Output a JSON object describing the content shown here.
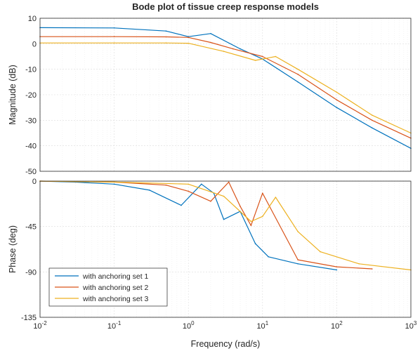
{
  "chart_data": [
    {
      "type": "line",
      "title": "Bode plot of tissue creep response models",
      "xlabel": "",
      "ylabel": "Magnitude (dB)",
      "xscale": "log",
      "xlim": [
        0.01,
        1000
      ],
      "ylim": [
        -50,
        10
      ],
      "yticks": [
        "10",
        "0",
        "-10",
        "-20",
        "-30",
        "-40",
        "-50"
      ],
      "grid": true,
      "series": [
        {
          "name": "with anchoring set 1",
          "color": "#0072BD",
          "dc_gain_db": 6.3,
          "x": [
            0.01,
            0.1,
            0.5,
            1.0,
            2.0,
            5.0,
            10,
            30,
            100,
            300,
            1000
          ],
          "values": [
            6.3,
            6.2,
            5.0,
            2.8,
            4.0,
            -2.0,
            -6.0,
            -15.0,
            -25.0,
            -33.0,
            -41.0
          ]
        },
        {
          "name": "with anchoring set 2",
          "color": "#D95319",
          "dc_gain_db": 2.8,
          "x": [
            0.01,
            0.1,
            0.5,
            1.0,
            2.0,
            4.0,
            10,
            30,
            100,
            300,
            1000
          ],
          "values": [
            2.8,
            2.8,
            2.7,
            2.5,
            0.5,
            -2.0,
            -5.0,
            -12.0,
            -22.0,
            -30.0,
            -37.0
          ]
        },
        {
          "name": "with anchoring set 3",
          "color": "#EDB120",
          "dc_gain_db": 0.3,
          "x": [
            0.01,
            0.1,
            0.5,
            1.0,
            3.0,
            8.0,
            15,
            30,
            100,
            300,
            1000
          ],
          "values": [
            0.3,
            0.3,
            0.3,
            0.2,
            -3.0,
            -6.5,
            -5.0,
            -10.0,
            -19.0,
            -28.0,
            -35.0
          ]
        }
      ]
    },
    {
      "type": "line",
      "title": "",
      "xlabel": "Frequency  (rad/s)",
      "ylabel": "Phase (deg)",
      "xscale": "log",
      "xlim": [
        0.01,
        1000
      ],
      "ylim": [
        -135,
        0
      ],
      "xticks": [
        {
          "base": "10",
          "exp": "-2"
        },
        {
          "base": "10",
          "exp": "-1"
        },
        {
          "base": "10",
          "exp": "0"
        },
        {
          "base": "10",
          "exp": "1"
        },
        {
          "base": "10",
          "exp": "2"
        },
        {
          "base": "10",
          "exp": "3"
        }
      ],
      "yticks": [
        "0",
        "-45",
        "-90",
        "-135"
      ],
      "grid": true,
      "legend": {
        "position": "bottom-left",
        "entries": [
          "with anchoring set 1",
          "with anchoring set 2",
          "with anchoring set 3"
        ]
      },
      "series": [
        {
          "name": "with anchoring set 1",
          "color": "#0072BD",
          "x": [
            0.01,
            0.03,
            0.1,
            0.3,
            0.8,
            1.5,
            2.2,
            3.0,
            5.0,
            8.0,
            12,
            30,
            100
          ],
          "values": [
            0,
            -1,
            -3,
            -9,
            -24,
            -3,
            -12,
            -38,
            -30,
            -62,
            -75,
            -82,
            -88
          ]
        },
        {
          "name": "with anchoring set 2",
          "color": "#D95319",
          "x": [
            0.01,
            0.1,
            0.5,
            1.0,
            2.0,
            3.5,
            5.0,
            7.0,
            10,
            30,
            100,
            300
          ],
          "values": [
            0,
            -1,
            -4,
            -10,
            -20,
            -1,
            -25,
            -44,
            -12,
            -78,
            -85,
            -87
          ]
        },
        {
          "name": "with anchoring set 3",
          "color": "#EDB120",
          "x": [
            0.01,
            0.1,
            1.0,
            3.0,
            7.0,
            10,
            15,
            30,
            60,
            200,
            1000
          ],
          "values": [
            0,
            -1,
            -3,
            -15,
            -40,
            -35,
            -16,
            -50,
            -70,
            -82,
            -88
          ]
        }
      ]
    }
  ]
}
